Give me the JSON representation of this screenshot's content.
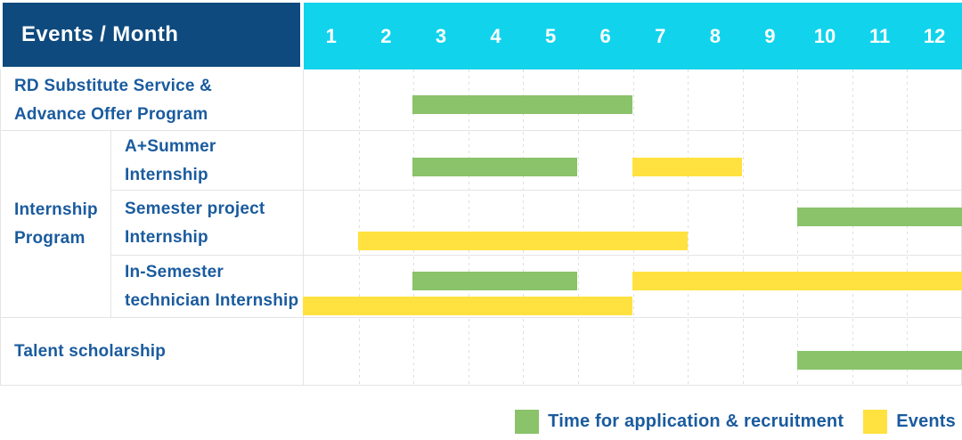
{
  "header": {
    "title": "Events / Month",
    "months": [
      "1",
      "2",
      "3",
      "4",
      "5",
      "6",
      "7",
      "8",
      "9",
      "10",
      "11",
      "12"
    ]
  },
  "group_label": "Internship\nProgram",
  "rows": [
    {
      "label": "RD Substitute Service &\nAdvance Offer Program",
      "bars": [
        {
          "color": "green",
          "lane": "single",
          "start": 3,
          "end": 6
        }
      ]
    },
    {
      "label": "A+Summer\nInternship",
      "bars": [
        {
          "color": "green",
          "lane": "single",
          "start": 3,
          "end": 5
        },
        {
          "color": "yellow",
          "lane": "single",
          "start": 7,
          "end": 8
        }
      ]
    },
    {
      "label": "Semester project\nInternship",
      "bars": [
        {
          "color": "green",
          "lane": "upper",
          "start": 10,
          "end": 12
        },
        {
          "color": "yellow",
          "lane": "lower",
          "start": 2,
          "end": 7
        }
      ]
    },
    {
      "label": "In-Semester\ntechnician Internship",
      "bars": [
        {
          "color": "green",
          "lane": "upper",
          "start": 3,
          "end": 5
        },
        {
          "color": "yellow",
          "lane": "upper",
          "start": 7,
          "end": 12
        },
        {
          "color": "yellow",
          "lane": "lower",
          "start": 1,
          "end": 6
        }
      ]
    },
    {
      "label": "Talent scholarship",
      "bars": [
        {
          "color": "green",
          "lane": "single",
          "start": 10,
          "end": 12
        }
      ]
    }
  ],
  "legend": [
    {
      "swatch": "green",
      "label": "Time for application & recruitment"
    },
    {
      "swatch": "yellow",
      "label": "Events"
    }
  ],
  "colors": {
    "header_bg": "#0e4a7e",
    "months_bg": "#11d3ec",
    "green": "#8ac369",
    "yellow": "#ffe23f",
    "label_text": "#1a5b9e",
    "header_text": "#ffffff",
    "gridline": "#e4e4e4"
  },
  "chart_data": {
    "type": "bar",
    "subtype": "gantt",
    "title": "Events / Month",
    "xlabel": "Month",
    "x_ticks": [
      1,
      2,
      3,
      4,
      5,
      6,
      7,
      8,
      9,
      10,
      11,
      12
    ],
    "xlim": [
      1,
      12
    ],
    "grid": true,
    "legend_position": "bottom-right",
    "legend": [
      "Time for application & recruitment",
      "Events"
    ],
    "rows": [
      {
        "label": "RD Substitute Service & Advance Offer Program",
        "group": null,
        "bars": [
          {
            "series": "Time for application & recruitment",
            "start_month": 3,
            "end_month": 6
          }
        ]
      },
      {
        "label": "A+Summer Internship",
        "group": "Internship Program",
        "bars": [
          {
            "series": "Time for application & recruitment",
            "start_month": 3,
            "end_month": 5
          },
          {
            "series": "Events",
            "start_month": 7,
            "end_month": 8
          }
        ]
      },
      {
        "label": "Semester project Internship",
        "group": "Internship Program",
        "bars": [
          {
            "series": "Time for application & recruitment",
            "start_month": 10,
            "end_month": 12
          },
          {
            "series": "Events",
            "start_month": 2,
            "end_month": 7
          }
        ]
      },
      {
        "label": "In-Semester technician Internship",
        "group": "Internship Program",
        "bars": [
          {
            "series": "Time for application & recruitment",
            "start_month": 3,
            "end_month": 5
          },
          {
            "series": "Events",
            "start_month": 1,
            "end_month": 6
          },
          {
            "series": "Events",
            "start_month": 7,
            "end_month": 12
          }
        ]
      },
      {
        "label": "Talent scholarship",
        "group": null,
        "bars": [
          {
            "series": "Time for application & recruitment",
            "start_month": 10,
            "end_month": 12
          }
        ]
      }
    ]
  }
}
